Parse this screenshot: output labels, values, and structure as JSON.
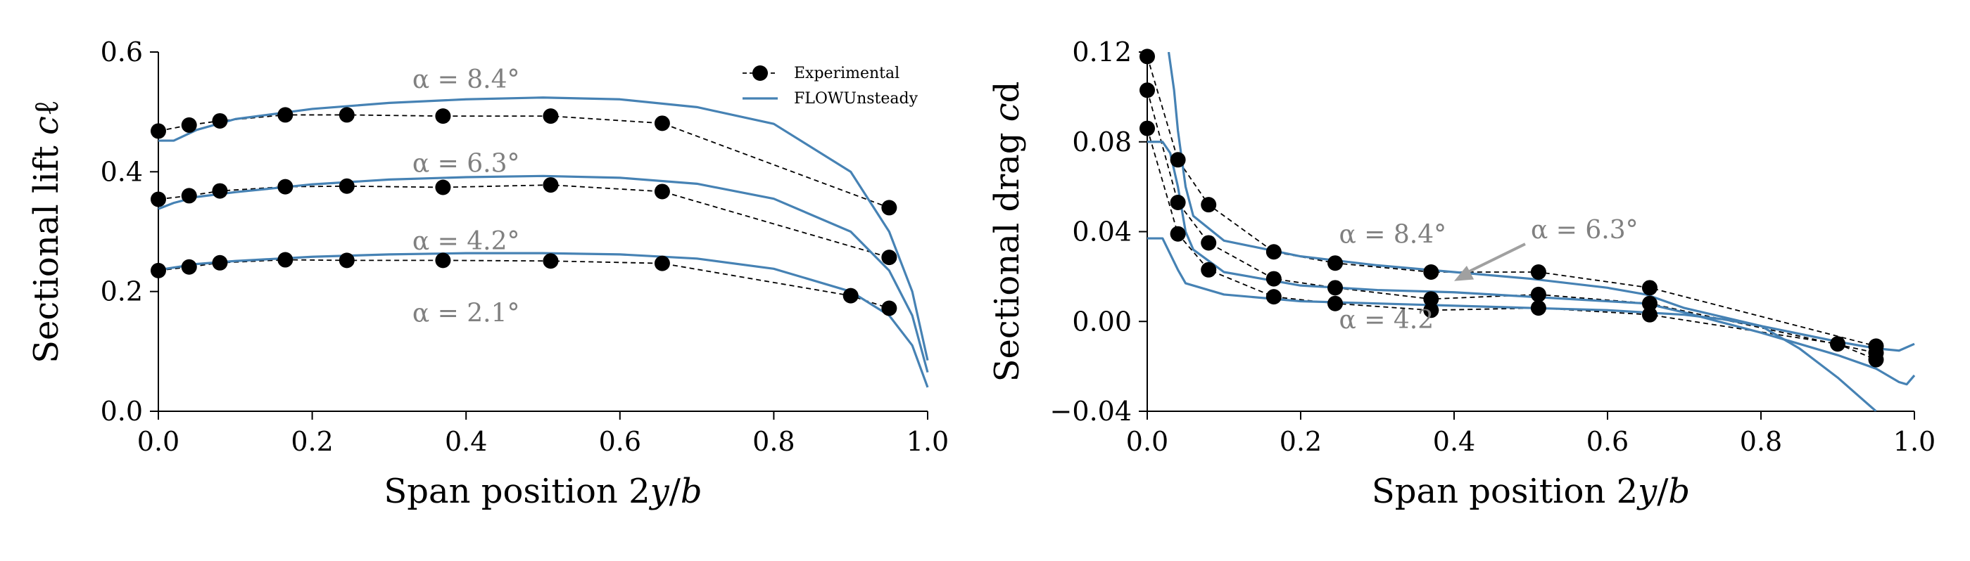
{
  "chart_data": [
    {
      "type": "line",
      "xlabel_parts": [
        "Span position 2",
        "y",
        "/",
        "b"
      ],
      "ylabel_parts": [
        "Sectional lift ",
        "c",
        "ℓ"
      ],
      "xlim": [
        0.0,
        1.0
      ],
      "ylim": [
        0.0,
        0.6
      ],
      "xticks": [
        "0.0",
        "0.2",
        "0.4",
        "0.6",
        "0.8",
        "1.0"
      ],
      "yticks": [
        "0.0",
        "0.2",
        "0.4",
        "0.6"
      ],
      "grid": false,
      "legend_position": "top-right",
      "legend": [
        "Experimental",
        "FLOWUnsteady"
      ],
      "annotations": [
        {
          "text": "α = 8.4°",
          "x": 0.4,
          "y": 0.54
        },
        {
          "text": "α = 6.3°",
          "x": 0.4,
          "y": 0.4
        },
        {
          "text": "α = 4.2°",
          "x": 0.4,
          "y": 0.27
        },
        {
          "text": "α = 2.1°",
          "x": 0.4,
          "y": 0.15
        }
      ],
      "experimental": [
        {
          "alpha": "8.4",
          "x": [
            0.0,
            0.04,
            0.08,
            0.165,
            0.245,
            0.37,
            0.51,
            0.655,
            0.95
          ],
          "y": [
            0.468,
            0.478,
            0.485,
            0.495,
            0.495,
            0.493,
            0.493,
            0.481,
            0.34
          ]
        },
        {
          "alpha": "6.3",
          "x": [
            0.0,
            0.04,
            0.08,
            0.165,
            0.245,
            0.37,
            0.51,
            0.655,
            0.95
          ],
          "y": [
            0.354,
            0.36,
            0.368,
            0.375,
            0.376,
            0.374,
            0.378,
            0.367,
            0.257
          ]
        },
        {
          "alpha": "4.2",
          "x": [
            0.0,
            0.04,
            0.08,
            0.165,
            0.245,
            0.37,
            0.51,
            0.655,
            0.9,
            0.95
          ],
          "y": [
            0.235,
            0.241,
            0.248,
            0.253,
            0.252,
            0.252,
            0.251,
            0.247,
            0.193,
            0.172
          ]
        }
      ],
      "flowunsteady": [
        {
          "alpha": "8.4",
          "x": [
            0.0,
            0.02,
            0.05,
            0.1,
            0.2,
            0.3,
            0.4,
            0.5,
            0.6,
            0.7,
            0.8,
            0.9,
            0.95,
            0.98,
            1.0
          ],
          "y": [
            0.452,
            0.452,
            0.47,
            0.488,
            0.505,
            0.515,
            0.521,
            0.524,
            0.521,
            0.508,
            0.48,
            0.4,
            0.3,
            0.2,
            0.085
          ]
        },
        {
          "alpha": "6.3",
          "x": [
            0.0,
            0.02,
            0.05,
            0.1,
            0.2,
            0.3,
            0.4,
            0.5,
            0.6,
            0.7,
            0.8,
            0.9,
            0.95,
            0.98,
            1.0
          ],
          "y": [
            0.338,
            0.348,
            0.358,
            0.366,
            0.379,
            0.387,
            0.391,
            0.393,
            0.39,
            0.38,
            0.355,
            0.3,
            0.235,
            0.16,
            0.065
          ]
        },
        {
          "alpha": "4.2",
          "x": [
            0.0,
            0.02,
            0.05,
            0.1,
            0.2,
            0.3,
            0.4,
            0.5,
            0.6,
            0.7,
            0.8,
            0.9,
            0.95,
            0.98,
            1.0
          ],
          "y": [
            0.236,
            0.24,
            0.246,
            0.251,
            0.258,
            0.262,
            0.264,
            0.264,
            0.262,
            0.255,
            0.238,
            0.2,
            0.16,
            0.11,
            0.04
          ]
        }
      ]
    },
    {
      "type": "line",
      "xlabel_parts": [
        "Span position 2",
        "y",
        "/",
        "b"
      ],
      "ylabel_parts": [
        "Sectional drag ",
        "c",
        "d"
      ],
      "xlim": [
        0.0,
        1.0
      ],
      "ylim": [
        -0.04,
        0.12
      ],
      "xticks": [
        "0.0",
        "0.2",
        "0.4",
        "0.6",
        "0.8",
        "1.0"
      ],
      "yticks": [
        "−0.04",
        "0.00",
        "0.04",
        "0.08",
        "0.12"
      ],
      "grid": false,
      "annotations": [
        {
          "text": "α = 8.4°",
          "x": 0.25,
          "y": 0.035
        },
        {
          "text": "α = 6.3°",
          "x": 0.5,
          "y": 0.037,
          "arrow_to": [
            0.4,
            0.018
          ]
        },
        {
          "text": "α = 4.2",
          "x": 0.25,
          "y": -0.003
        }
      ],
      "experimental": [
        {
          "alpha": "8.4",
          "x": [
            0.0,
            0.04,
            0.08,
            0.165,
            0.245,
            0.37,
            0.51,
            0.655,
            0.95
          ],
          "y": [
            0.118,
            0.072,
            0.052,
            0.031,
            0.026,
            0.022,
            0.022,
            0.015,
            -0.011
          ]
        },
        {
          "alpha": "6.3",
          "x": [
            0.0,
            0.04,
            0.08,
            0.165,
            0.245,
            0.37,
            0.51,
            0.655,
            0.95
          ],
          "y": [
            0.103,
            0.053,
            0.035,
            0.019,
            0.015,
            0.01,
            0.012,
            0.008,
            -0.014
          ]
        },
        {
          "alpha": "4.2",
          "x": [
            0.0,
            0.04,
            0.08,
            0.165,
            0.245,
            0.37,
            0.51,
            0.655,
            0.9,
            0.95
          ],
          "y": [
            0.086,
            0.039,
            0.023,
            0.011,
            0.008,
            0.005,
            0.006,
            0.003,
            -0.01,
            -0.017
          ]
        }
      ],
      "flowunsteady": [
        {
          "alpha": "8.4",
          "x": [
            0.028,
            0.035,
            0.04,
            0.05,
            0.06,
            0.1,
            0.2,
            0.3,
            0.4,
            0.5,
            0.6,
            0.65,
            0.7,
            0.8,
            0.9,
            0.95,
            0.98,
            1.0
          ],
          "y": [
            0.12,
            0.103,
            0.085,
            0.06,
            0.047,
            0.036,
            0.029,
            0.025,
            0.022,
            0.019,
            0.015,
            0.012,
            0.006,
            -0.002,
            -0.009,
            -0.012,
            -0.013,
            -0.01
          ]
        },
        {
          "alpha": "6.3",
          "x": [
            0.0,
            0.02,
            0.03,
            0.04,
            0.05,
            0.06,
            0.1,
            0.2,
            0.3,
            0.4,
            0.5,
            0.6,
            0.65,
            0.7,
            0.8,
            0.9,
            0.95,
            0.98,
            0.99,
            1.0
          ],
          "y": [
            0.08,
            0.08,
            0.075,
            0.06,
            0.04,
            0.032,
            0.022,
            0.016,
            0.014,
            0.013,
            0.011,
            0.009,
            0.008,
            0.004,
            -0.005,
            -0.015,
            -0.021,
            -0.027,
            -0.028,
            -0.024
          ]
        },
        {
          "alpha": "4.2",
          "x": [
            0.0,
            0.02,
            0.03,
            0.04,
            0.05,
            0.08,
            0.1,
            0.2,
            0.3,
            0.4,
            0.5,
            0.6,
            0.65,
            0.7,
            0.75,
            0.8,
            0.85,
            0.9,
            0.95
          ],
          "y": [
            0.037,
            0.037,
            0.03,
            0.023,
            0.017,
            0.014,
            0.012,
            0.009,
            0.008,
            0.007,
            0.006,
            0.005,
            0.004,
            0.003,
            0.001,
            -0.002,
            -0.012,
            -0.025,
            -0.04
          ]
        }
      ]
    }
  ]
}
